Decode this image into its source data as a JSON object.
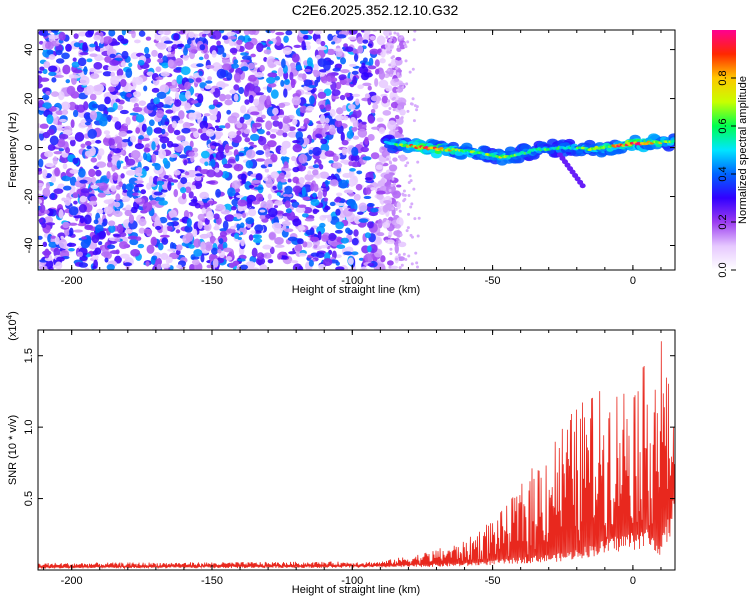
{
  "title": "C2E6.2025.352.12.10.G32",
  "chart_data": [
    {
      "type": "heatmap",
      "name": "spectrogram",
      "xlabel": "Height of straight line (km)",
      "ylabel": "Frequency (Hz)",
      "xlim": [
        -212,
        15
      ],
      "ylim": [
        -50,
        48
      ],
      "x_ticks": [
        -200,
        -150,
        -100,
        -50,
        0
      ],
      "y_ticks": [
        -40,
        -20,
        0,
        20,
        40
      ],
      "colorbar": {
        "label": "Normalized spectral amplitude",
        "range": [
          0,
          1
        ],
        "ticks": [
          "0.0",
          "0.2",
          "0.4",
          "0.6",
          "0.8"
        ],
        "tick_values": [
          0.0,
          0.2,
          0.4,
          0.6,
          0.8
        ],
        "colors": [
          "#ffffff",
          "#e6c8ff",
          "#9b3cf0",
          "#3200ff",
          "#0064ff",
          "#00e6ff",
          "#00ff50",
          "#c8ff00",
          "#ffc800",
          "#ff2800",
          "#ff0090"
        ]
      },
      "noise_region_x": [
        -212,
        -88
      ],
      "signal_track": {
        "x": [
          -88,
          -75,
          -60,
          -45,
          -35,
          -25,
          -15,
          0,
          15
        ],
        "freq": [
          2,
          0,
          -1.5,
          -4,
          -1,
          0,
          -0.5,
          1.5,
          2.5
        ],
        "amplitude": [
          0.35,
          0.95,
          0.55,
          0.6,
          0.5,
          0.45,
          0.55,
          0.95,
          0.5
        ]
      }
    },
    {
      "type": "line",
      "name": "snr",
      "xlabel": "Height of straight line (km)",
      "ylabel": "SNR (10 * v/v)",
      "y_multiplier": "(x10",
      "y_multiplier_exp": "4",
      "y_multiplier_close": ")",
      "xlim": [
        -212,
        15
      ],
      "ylim": [
        0,
        1.68
      ],
      "x_ticks": [
        -200,
        -150,
        -100,
        -50,
        0
      ],
      "y_ticks": [
        "0.5",
        "1.0",
        "1.5"
      ],
      "y_tick_values": [
        0.5,
        1.0,
        1.5
      ],
      "color": "#e8281e",
      "envelope": {
        "x": [
          -212,
          -90,
          -75,
          -60,
          -45,
          -35,
          -25,
          -15,
          -5,
          5,
          10,
          15
        ],
        "baseline": [
          0.02,
          0.03,
          0.04,
          0.05,
          0.08,
          0.1,
          0.12,
          0.18,
          0.25,
          0.3,
          0.2,
          0.55
        ],
        "peak": [
          0.05,
          0.06,
          0.12,
          0.2,
          0.45,
          0.75,
          1.05,
          1.25,
          1.3,
          1.45,
          1.68,
          1.0
        ]
      }
    }
  ]
}
